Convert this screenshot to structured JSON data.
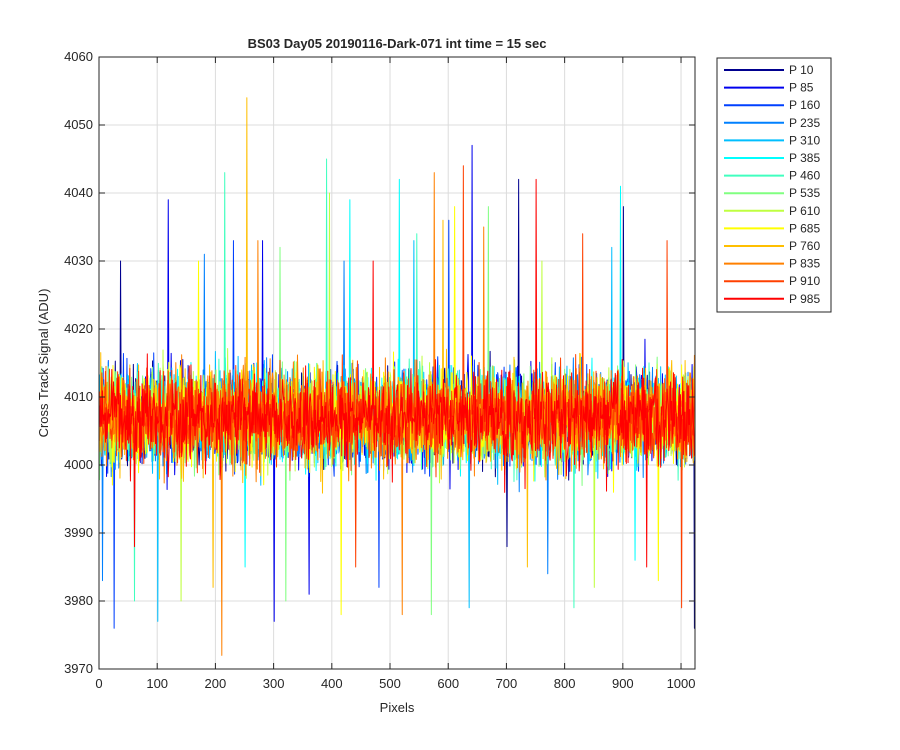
{
  "chart_data": {
    "type": "line",
    "title": "BS03 Day05 20190116-Dark-071 int time = 15 sec",
    "xlabel": "Pixels",
    "ylabel": "Cross Track Signal (ADU)",
    "xlim": [
      0,
      1024
    ],
    "ylim": [
      3970,
      4060
    ],
    "xticks": [
      "0",
      "100",
      "200",
      "300",
      "400",
      "500",
      "600",
      "700",
      "800",
      "900",
      "1000"
    ],
    "yticks": [
      "3970",
      "3980",
      "3990",
      "4000",
      "4010",
      "4020",
      "4030",
      "4040",
      "4050",
      "4060"
    ],
    "grid": true,
    "legend_position": "outside-right",
    "n_points_per_series": 1024,
    "value_center": 4007,
    "value_spread": 6,
    "series": [
      {
        "name": "P 10",
        "color": "#00008F",
        "spikes": [
          [
            720,
            4042
          ],
          [
            900,
            4038
          ],
          [
            36,
            4030
          ]
        ],
        "dips": [
          [
            1022,
            3976
          ],
          [
            700,
            3988
          ]
        ]
      },
      {
        "name": "P 85",
        "color": "#0000EE",
        "spikes": [
          [
            118,
            4039
          ],
          [
            640,
            4047
          ],
          [
            280,
            4033
          ]
        ],
        "dips": [
          [
            300,
            3977
          ],
          [
            360,
            3981
          ]
        ]
      },
      {
        "name": "P 160",
        "color": "#0040FF",
        "spikes": [
          [
            230,
            4033
          ],
          [
            600,
            4036
          ]
        ],
        "dips": [
          [
            25,
            3976
          ],
          [
            480,
            3982
          ]
        ]
      },
      {
        "name": "P 235",
        "color": "#0080FF",
        "spikes": [
          [
            180,
            4031
          ],
          [
            420,
            4030
          ]
        ],
        "dips": [
          [
            5,
            3983
          ],
          [
            770,
            3984
          ]
        ]
      },
      {
        "name": "P 310",
        "color": "#00BFFF",
        "spikes": [
          [
            540,
            4033
          ],
          [
            880,
            4032
          ]
        ],
        "dips": [
          [
            635,
            3979
          ],
          [
            100,
            3977
          ]
        ]
      },
      {
        "name": "P 385",
        "color": "#00FFFF",
        "spikes": [
          [
            515,
            4042
          ],
          [
            430,
            4039
          ],
          [
            895,
            4041
          ]
        ],
        "dips": [
          [
            250,
            3985
          ],
          [
            920,
            3986
          ]
        ]
      },
      {
        "name": "P 460",
        "color": "#40FFBF",
        "spikes": [
          [
            390,
            4045
          ],
          [
            215,
            4043
          ],
          [
            545,
            4034
          ]
        ],
        "dips": [
          [
            60,
            3980
          ],
          [
            815,
            3979
          ]
        ]
      },
      {
        "name": "P 535",
        "color": "#80FF80",
        "spikes": [
          [
            668,
            4038
          ],
          [
            310,
            4032
          ]
        ],
        "dips": [
          [
            320,
            3980
          ],
          [
            570,
            3978
          ]
        ]
      },
      {
        "name": "P 610",
        "color": "#BFFF40",
        "spikes": [
          [
            395,
            4040
          ],
          [
            760,
            4030
          ]
        ],
        "dips": [
          [
            140,
            3980
          ],
          [
            850,
            3982
          ]
        ]
      },
      {
        "name": "P 685",
        "color": "#FFFF00",
        "spikes": [
          [
            610,
            4038
          ],
          [
            170,
            4030
          ]
        ],
        "dips": [
          [
            415,
            3978
          ],
          [
            960,
            3983
          ]
        ]
      },
      {
        "name": "P 760",
        "color": "#FFBF00",
        "spikes": [
          [
            253,
            4054
          ],
          [
            590,
            4036
          ]
        ],
        "dips": [
          [
            195,
            3982
          ],
          [
            735,
            3985
          ]
        ]
      },
      {
        "name": "P 835",
        "color": "#FF8000",
        "spikes": [
          [
            575,
            4043
          ],
          [
            660,
            4035
          ],
          [
            272,
            4033
          ]
        ],
        "dips": [
          [
            520,
            3978
          ],
          [
            210,
            3972
          ]
        ]
      },
      {
        "name": "P 910",
        "color": "#FF4000",
        "spikes": [
          [
            625,
            4044
          ],
          [
            830,
            4034
          ],
          [
            975,
            4033
          ]
        ],
        "dips": [
          [
            1000,
            3979
          ],
          [
            440,
            3985
          ]
        ]
      },
      {
        "name": "P 985",
        "color": "#FF0000",
        "spikes": [
          [
            750,
            4042
          ],
          [
            470,
            4030
          ]
        ],
        "dips": [
          [
            60,
            3988
          ],
          [
            940,
            3985
          ]
        ]
      }
    ]
  }
}
